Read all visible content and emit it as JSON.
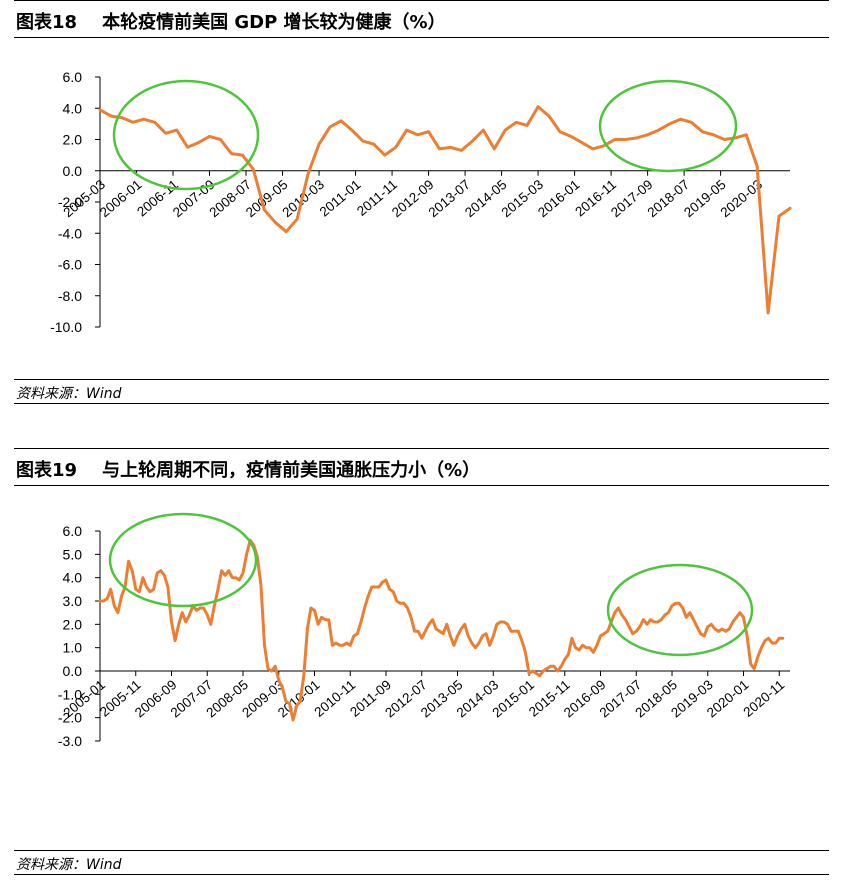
{
  "colors": {
    "line": "#ED7D31",
    "highlight": "#4CC63B",
    "axis": "#000000"
  },
  "source_label": "资料来源：Wind",
  "chart_data": [
    {
      "id": "fig18",
      "type": "line",
      "title": "图表18    本轮疫情前美国 GDP 增长较为健康（%）",
      "ylim": [
        -10.0,
        6.0
      ],
      "yticks": [
        "6.0",
        "4.0",
        "2.0",
        "0.0",
        "-2.0",
        "-4.0",
        "-6.0",
        "-8.0",
        "-10.0"
      ],
      "xticks": [
        "2005-03",
        "2006-01",
        "2006-11",
        "2007-09",
        "2008-07",
        "2009-05",
        "2010-03",
        "2011-01",
        "2011-11",
        "2012-09",
        "2013-07",
        "2014-05",
        "2015-03",
        "2016-01",
        "2016-11",
        "2017-09",
        "2018-07",
        "2019-05",
        "2020-03"
      ],
      "grid": false,
      "highlight_circles": 2,
      "series": [
        {
          "x": [
            "2005-03",
            "2005-06",
            "2005-09",
            "2005-12",
            "2006-03",
            "2006-06",
            "2006-09",
            "2006-12",
            "2007-03",
            "2007-06",
            "2007-09",
            "2007-12",
            "2008-03",
            "2008-06",
            "2008-09",
            "2008-12",
            "2009-03",
            "2009-06",
            "2009-09",
            "2009-12",
            "2010-03",
            "2010-06",
            "2010-09",
            "2010-12",
            "2011-03",
            "2011-06",
            "2011-09",
            "2011-12",
            "2012-03",
            "2012-06",
            "2012-09",
            "2012-12",
            "2013-03",
            "2013-06",
            "2013-09",
            "2013-12",
            "2014-03",
            "2014-06",
            "2014-09",
            "2014-12",
            "2015-03",
            "2015-06",
            "2015-09",
            "2015-12",
            "2016-03",
            "2016-06",
            "2016-09",
            "2016-12",
            "2017-03",
            "2017-06",
            "2017-09",
            "2017-12",
            "2018-03",
            "2018-06",
            "2018-09",
            "2018-12",
            "2019-03",
            "2019-06",
            "2019-09",
            "2019-12",
            "2020-03",
            "2020-06",
            "2020-09",
            "2020-12"
          ],
          "values": [
            3.9,
            3.5,
            3.4,
            3.1,
            3.3,
            3.1,
            2.4,
            2.6,
            1.5,
            1.8,
            2.2,
            2.0,
            1.1,
            1.0,
            0.1,
            -2.5,
            -3.3,
            -3.9,
            -3.1,
            -0.2,
            1.7,
            2.8,
            3.2,
            2.6,
            1.9,
            1.7,
            1.0,
            1.5,
            2.6,
            2.3,
            2.5,
            1.4,
            1.5,
            1.3,
            1.9,
            2.6,
            1.4,
            2.6,
            3.1,
            2.9,
            4.1,
            3.5,
            2.5,
            2.2,
            1.8,
            1.4,
            1.6,
            2.0,
            2.0,
            2.1,
            2.3,
            2.6,
            3.0,
            3.3,
            3.1,
            2.5,
            2.3,
            2.0,
            2.1,
            2.3,
            0.3,
            -9.1,
            -2.9,
            -2.4
          ]
        }
      ]
    },
    {
      "id": "fig19",
      "type": "line",
      "title": "图表19    与上轮周期不同，疫情前美国通胀压力小（%）",
      "ylim": [
        -3.0,
        6.0
      ],
      "yticks": [
        "6.0",
        "5.0",
        "4.0",
        "3.0",
        "2.0",
        "1.0",
        "0.0",
        "-1.0",
        "-2.0",
        "-3.0"
      ],
      "xticks": [
        "2005-01",
        "2005-11",
        "2006-09",
        "2007-07",
        "2008-05",
        "2009-03",
        "2010-01",
        "2010-11",
        "2011-09",
        "2012-07",
        "2013-05",
        "2014-03",
        "2015-01",
        "2015-11",
        "2016-09",
        "2017-07",
        "2018-05",
        "2019-03",
        "2020-01",
        "2020-11"
      ],
      "grid": false,
      "highlight_circles": 2,
      "series": [
        {
          "x_start": "2005-01",
          "values": [
            3.0,
            3.0,
            3.1,
            3.5,
            2.8,
            2.5,
            3.2,
            3.6,
            4.7,
            4.3,
            3.5,
            3.4,
            4.0,
            3.6,
            3.4,
            3.5,
            4.2,
            4.3,
            4.1,
            3.6,
            2.1,
            1.3,
            2.0,
            2.5,
            2.1,
            2.4,
            2.8,
            2.6,
            2.7,
            2.7,
            2.4,
            2.0,
            2.8,
            3.5,
            4.3,
            4.1,
            4.3,
            4.0,
            4.0,
            3.9,
            4.2,
            5.0,
            5.6,
            5.4,
            4.9,
            3.7,
            1.1,
            0.1,
            0.0,
            0.2,
            -0.4,
            -0.7,
            -1.3,
            -1.4,
            -2.1,
            -1.5,
            -1.3,
            -0.2,
            1.8,
            2.7,
            2.6,
            2.0,
            2.3,
            2.2,
            2.2,
            1.1,
            1.2,
            1.1,
            1.1,
            1.2,
            1.1,
            1.5,
            1.6,
            2.1,
            2.7,
            3.2,
            3.6,
            3.6,
            3.6,
            3.8,
            3.9,
            3.5,
            3.4,
            3.0,
            2.9,
            2.9,
            2.7,
            2.3,
            1.7,
            1.7,
            1.4,
            1.7,
            2.0,
            2.2,
            1.8,
            1.7,
            1.6,
            2.0,
            1.5,
            1.1,
            1.5,
            1.8,
            2.0,
            1.5,
            1.2,
            1.0,
            1.2,
            1.5,
            1.6,
            1.1,
            1.5,
            2.0,
            2.1,
            2.1,
            2.0,
            1.7,
            1.7,
            1.7,
            1.3,
            0.8,
            -0.1,
            0.0,
            -0.1,
            -0.2,
            0.0,
            0.1,
            0.2,
            0.2,
            0.0,
            0.2,
            0.5,
            0.7,
            1.4,
            1.0,
            0.9,
            1.1,
            1.0,
            1.0,
            0.8,
            1.1,
            1.5,
            1.6,
            1.7,
            2.1,
            2.5,
            2.7,
            2.4,
            2.2,
            1.9,
            1.6,
            1.7,
            1.9,
            2.2,
            2.0,
            2.2,
            2.1,
            2.1,
            2.2,
            2.4,
            2.5,
            2.8,
            2.9,
            2.9,
            2.7,
            2.3,
            2.5,
            2.2,
            1.9,
            1.6,
            1.5,
            1.9,
            2.0,
            1.8,
            1.7,
            1.8,
            1.7,
            1.8,
            2.1,
            2.3,
            2.5,
            2.3,
            1.5,
            0.3,
            0.1,
            0.6,
            1.0,
            1.3,
            1.4,
            1.2,
            1.2,
            1.4,
            1.4
          ]
        }
      ]
    }
  ]
}
